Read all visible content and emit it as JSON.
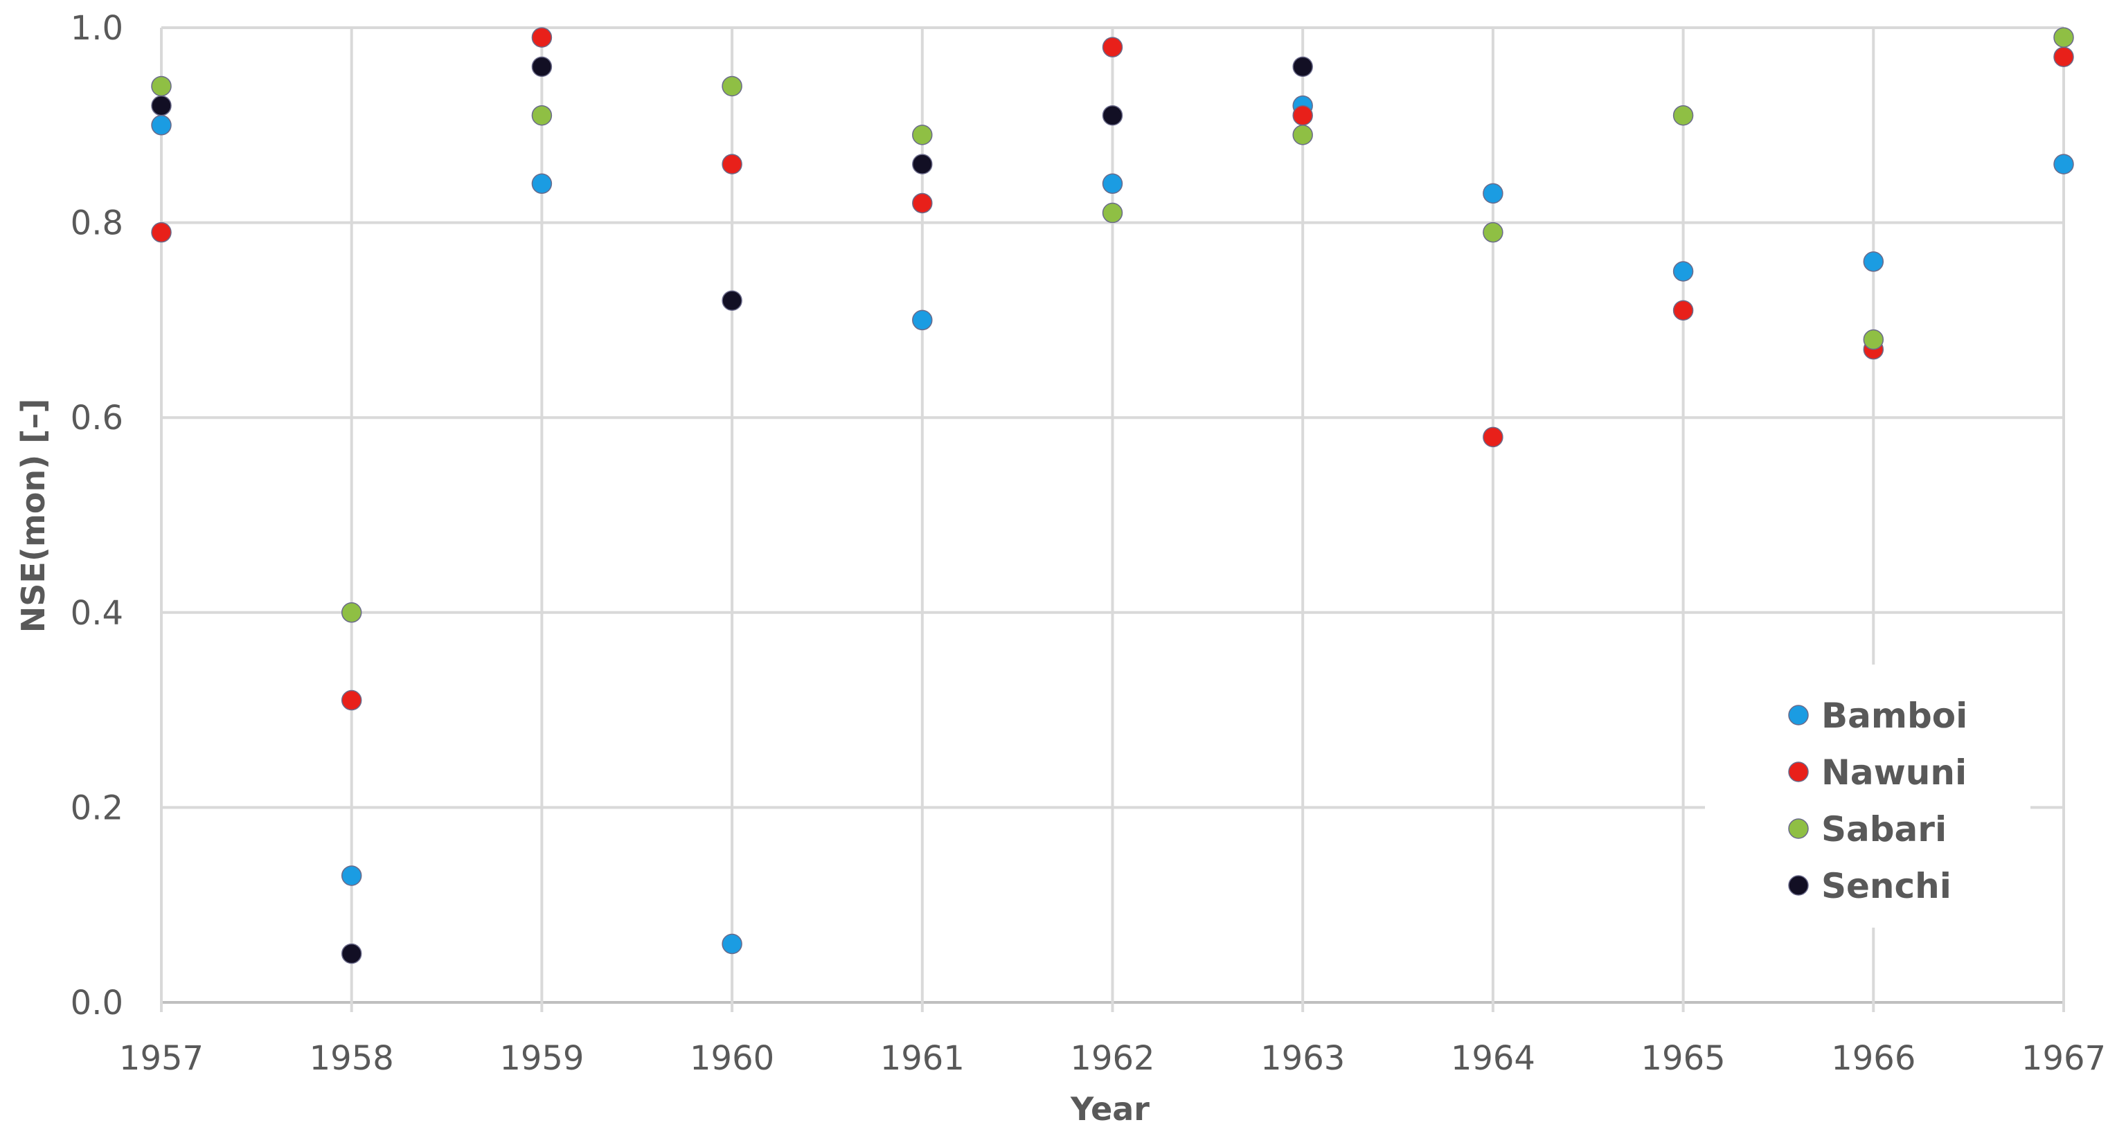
{
  "chart_data": {
    "type": "scatter",
    "xlabel": "Year",
    "ylabel": "NSE(mon) [–]",
    "x": [
      "1957",
      "1958",
      "1959",
      "1960",
      "1961",
      "1962",
      "1963",
      "1964",
      "1965",
      "1966",
      "1967"
    ],
    "xlim": [
      1957,
      1967
    ],
    "ylim": [
      0.0,
      1.0
    ],
    "yticks": [
      "0.0",
      "0.2",
      "0.4",
      "0.6",
      "0.8",
      "1.0"
    ],
    "grid": true,
    "legend_position": "bottom-right",
    "series": [
      {
        "name": "Bamboi",
        "color": "#1b9ce2",
        "values": [
          0.9,
          0.13,
          0.84,
          0.06,
          0.7,
          0.84,
          0.92,
          0.83,
          0.75,
          0.76,
          0.86
        ]
      },
      {
        "name": "Nawuni",
        "color": "#e8201a",
        "values": [
          0.79,
          0.31,
          0.99,
          0.86,
          0.82,
          0.98,
          0.91,
          0.58,
          0.71,
          0.67,
          0.97
        ]
      },
      {
        "name": "Sabari",
        "color": "#8fbf44",
        "values": [
          0.94,
          0.4,
          0.91,
          0.94,
          0.89,
          0.81,
          0.89,
          0.79,
          0.91,
          0.68,
          0.99
        ]
      },
      {
        "name": "Senchi",
        "color": "#120f24",
        "values": [
          0.92,
          0.05,
          0.96,
          0.72,
          0.86,
          0.91,
          0.96,
          null,
          null,
          null,
          null
        ]
      }
    ]
  }
}
